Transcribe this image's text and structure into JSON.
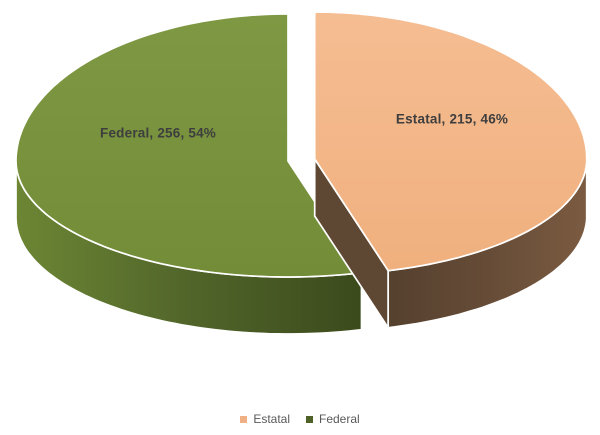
{
  "chart_data": {
    "type": "pie",
    "style": "3d-exploded-pie",
    "background": "#FFFFFF",
    "title": "",
    "slices": [
      {
        "label": "Estatal",
        "value": 215,
        "percent": "46%",
        "data_label": "Estatal, 215, 46%",
        "exploded": true,
        "top_gradient": [
          "#F5BD92",
          "#F0B07E"
        ],
        "side_gradient": [
          "#55402E",
          "#664C37",
          "#7B5B41"
        ],
        "cut_face_color": "#5F4833",
        "legend_color": "#EFB183"
      },
      {
        "label": "Federal",
        "value": 256,
        "percent": "54%",
        "data_label": "Federal, 256, 54%",
        "exploded": false,
        "top_gradient": [
          "#7E9843",
          "#728C38"
        ],
        "side_gradient": [
          "#6C8634",
          "#51652A",
          "#3B4A1C"
        ],
        "cut_face_color": "#4A5B24",
        "legend_color": "#4E6227"
      }
    ],
    "label_color": "#3E3E3E",
    "legend": {
      "position": "bottom",
      "text_color": "#595959",
      "items": [
        {
          "label": "Estatal",
          "color": "#EFB183"
        },
        {
          "label": "Federal",
          "color": "#4E6227"
        }
      ]
    }
  }
}
